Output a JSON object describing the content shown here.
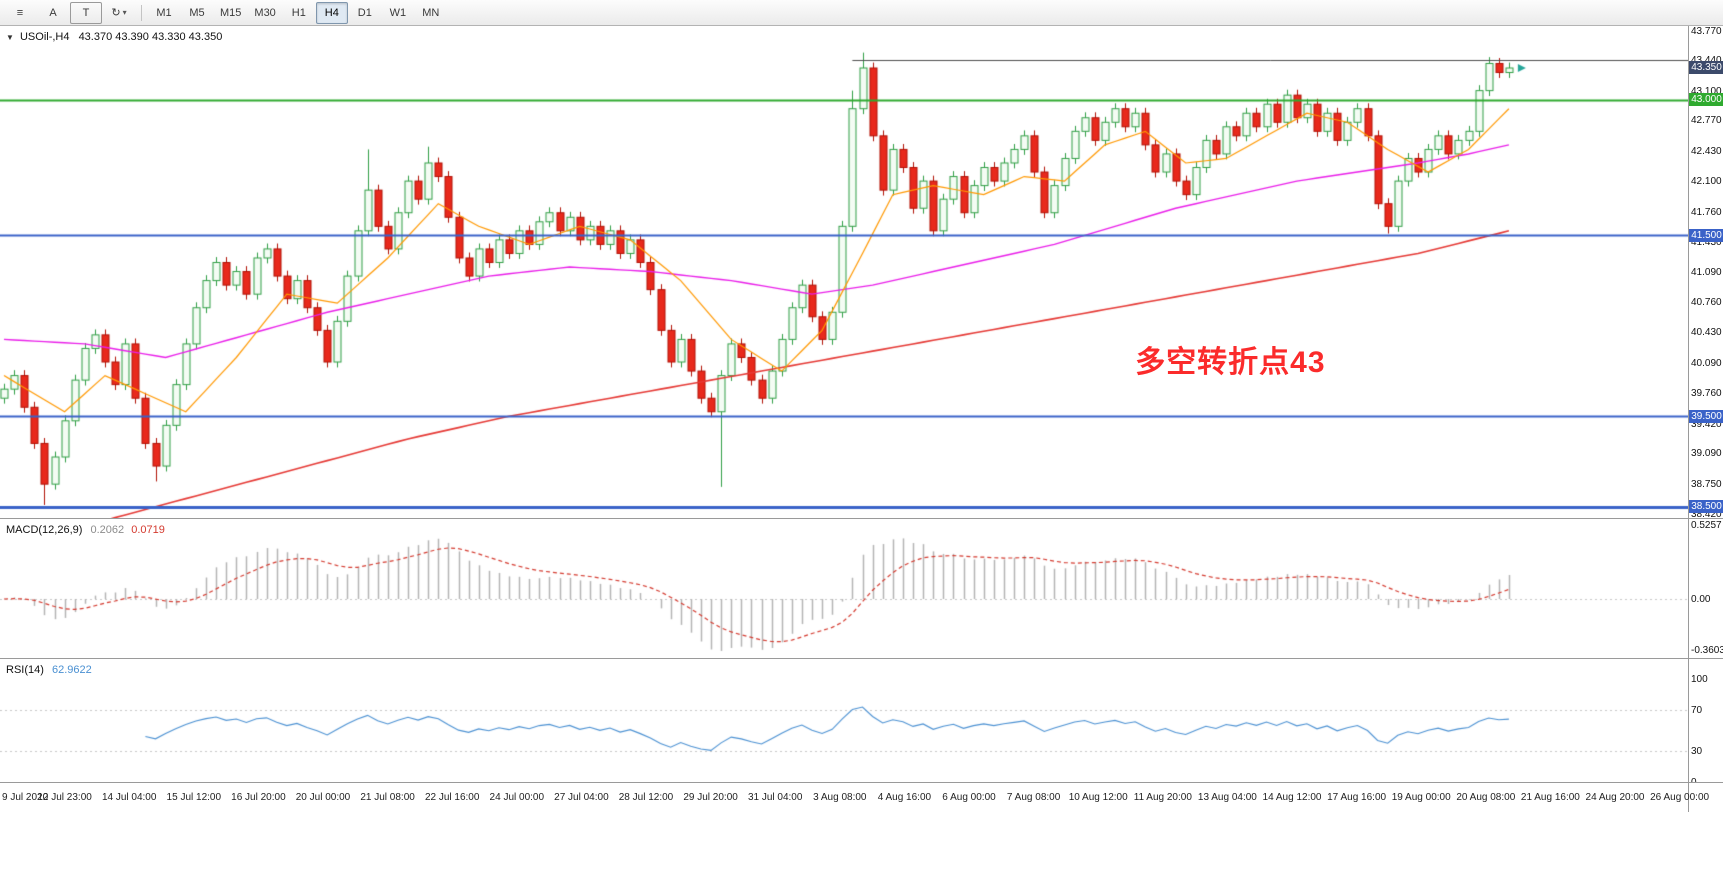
{
  "toolbar": {
    "tools": [
      {
        "id": "chart-list-button",
        "label": "≡"
      },
      {
        "id": "cursor-tool-button",
        "label": "A"
      },
      {
        "id": "text-tool-button",
        "label": "T"
      },
      {
        "id": "template-button",
        "label": "↻",
        "caret": true
      }
    ],
    "timeframes": [
      "M1",
      "M5",
      "M15",
      "M30",
      "H1",
      "H4",
      "D1",
      "W1",
      "MN"
    ],
    "active_timeframe": "H4"
  },
  "main_chart": {
    "collapse_icon": "▼",
    "symbol_label": "USOil-,H4",
    "ohlc_label": "43.370 43.390 43.330 43.350",
    "annotation": {
      "text": "多空转折点43",
      "bar": 112,
      "price": 40.38
    },
    "badges": [
      {
        "label": "43.350",
        "price": 43.35,
        "color": "#3c4a6b"
      },
      {
        "label": "43.000",
        "price": 43.0,
        "color": "#2faa2f"
      },
      {
        "label": "41.500",
        "price": 41.5,
        "color": "#3a62c8"
      },
      {
        "label": "39.500",
        "price": 39.5,
        "color": "#3a62c8"
      },
      {
        "label": "38.500",
        "price": 38.5,
        "color": "#3a62c8"
      }
    ],
    "hlines": [
      {
        "price": 43.44,
        "color": "#4d4d4d",
        "width": 1,
        "from_bar": 84
      },
      {
        "price": 43.0,
        "color": "#2faa2f",
        "width": 2
      },
      {
        "price": 41.5,
        "color": "#3a62c8",
        "width": 2
      },
      {
        "price": 39.5,
        "color": "#3a62c8",
        "width": 2
      },
      {
        "price": 38.5,
        "color": "#3a62c8",
        "width": 3
      }
    ]
  },
  "macd_panel": {
    "label": "MACD(12,26,9)",
    "value_main": "0.2062",
    "value_signal": "0.0719"
  },
  "rsi_panel": {
    "label": "RSI(14)",
    "value": "62.9622",
    "levels": [
      70,
      30
    ]
  },
  "colors": {
    "up_stroke": "#2f9e44",
    "up_fill": "#f4fcf4",
    "down_stroke": "#b01005",
    "down_fill": "#e8291c",
    "ma_fast": "#ff9800",
    "ma_mid": "#e augment",
    "ma_mid_fix": "#e91ee9",
    "ma_slow": "#e53935",
    "macd_hist": "#b4b4b4",
    "macd_signal": "#d43a2f",
    "rsi_line": "#4a90d2",
    "level_dots": "#c6c6c6",
    "marker": "#26a69a",
    "annotation": "#fb2b2b"
  },
  "chart_data": {
    "type": "candlestick",
    "symbol": "USOil-",
    "timeframe": "H4",
    "current_bar": {
      "open": 43.37,
      "high": 43.39,
      "low": 43.33,
      "close": 43.35
    },
    "y_axis": {
      "top_price": 43.77,
      "bottom_price": 38.42
    },
    "y_ticks": [
      {
        "label": "43.770",
        "value": 43.77
      },
      {
        "label": "43.440",
        "value": 43.44
      },
      {
        "label": "43.100",
        "value": 43.1
      },
      {
        "label": "42.770",
        "value": 42.77
      },
      {
        "label": "42.430",
        "value": 42.43
      },
      {
        "label": "42.100",
        "value": 42.1
      },
      {
        "label": "41.760",
        "value": 41.76
      },
      {
        "label": "41.430",
        "value": 41.43
      },
      {
        "label": "41.090",
        "value": 41.09
      },
      {
        "label": "40.760",
        "value": 40.76
      },
      {
        "label": "40.430",
        "value": 40.43
      },
      {
        "label": "40.090",
        "value": 40.09
      },
      {
        "label": "39.760",
        "value": 39.76
      },
      {
        "label": "39.420",
        "value": 39.42
      },
      {
        "label": "39.090",
        "value": 39.09
      },
      {
        "label": "38.750",
        "value": 38.75
      },
      {
        "label": "38.420",
        "value": 38.42
      }
    ],
    "first_open": 39.7,
    "default_wick": 0.06,
    "closes": [
      39.8,
      39.95,
      39.6,
      39.2,
      38.75,
      39.05,
      39.45,
      39.9,
      40.25,
      40.4,
      40.1,
      39.85,
      40.3,
      39.7,
      39.2,
      38.95,
      39.4,
      39.85,
      40.3,
      40.7,
      41.0,
      41.2,
      40.95,
      41.1,
      40.85,
      41.25,
      41.35,
      41.05,
      40.8,
      41.0,
      40.7,
      40.45,
      40.1,
      40.55,
      41.05,
      41.55,
      42.0,
      41.6,
      41.35,
      41.75,
      42.1,
      41.9,
      42.3,
      42.15,
      41.7,
      41.25,
      41.05,
      41.35,
      41.2,
      41.45,
      41.3,
      41.55,
      41.4,
      41.65,
      41.75,
      41.55,
      41.7,
      41.45,
      41.6,
      41.4,
      41.55,
      41.3,
      41.45,
      41.2,
      40.9,
      40.45,
      40.1,
      40.35,
      40.0,
      39.7,
      39.55,
      39.95,
      40.3,
      40.15,
      39.9,
      39.7,
      40.0,
      40.35,
      40.7,
      40.95,
      40.6,
      40.35,
      40.65,
      41.6,
      42.9,
      43.35,
      42.6,
      42.0,
      42.45,
      42.25,
      41.8,
      42.1,
      41.55,
      41.9,
      42.15,
      41.75,
      42.05,
      42.25,
      42.1,
      42.3,
      42.45,
      42.6,
      42.2,
      41.75,
      42.05,
      42.35,
      42.65,
      42.8,
      42.55,
      42.75,
      42.9,
      42.7,
      42.85,
      42.5,
      42.2,
      42.4,
      42.1,
      41.95,
      42.25,
      42.55,
      42.4,
      42.7,
      42.6,
      42.85,
      42.7,
      42.95,
      42.75,
      43.05,
      42.8,
      42.95,
      42.65,
      42.85,
      42.55,
      42.75,
      42.9,
      42.6,
      41.85,
      41.6,
      42.1,
      42.35,
      42.2,
      42.45,
      42.6,
      42.4,
      42.55,
      42.65,
      43.1,
      43.4,
      43.3,
      43.35
    ],
    "special_wicks": {
      "4": {
        "low": 38.52
      },
      "15": {
        "low": 38.78
      },
      "36": {
        "high": 42.45
      },
      "42": {
        "high": 42.48
      },
      "71": {
        "low": 38.72
      },
      "84": {
        "high": 43.1
      },
      "85": {
        "high": 43.52
      },
      "137": {
        "low": 41.52
      },
      "147": {
        "high": 43.47
      }
    },
    "ma_fast_anchors": [
      [
        0,
        39.95
      ],
      [
        6,
        39.55
      ],
      [
        10,
        39.95
      ],
      [
        14,
        39.75
      ],
      [
        18,
        39.55
      ],
      [
        23,
        40.15
      ],
      [
        28,
        40.85
      ],
      [
        33,
        40.75
      ],
      [
        38,
        41.25
      ],
      [
        43,
        41.85
      ],
      [
        47,
        41.6
      ],
      [
        52,
        41.4
      ],
      [
        57,
        41.6
      ],
      [
        62,
        41.45
      ],
      [
        67,
        41.0
      ],
      [
        72,
        40.35
      ],
      [
        77,
        40.0
      ],
      [
        81,
        40.45
      ],
      [
        85,
        41.3
      ],
      [
        88,
        41.95
      ],
      [
        92,
        42.05
      ],
      [
        97,
        41.95
      ],
      [
        101,
        42.15
      ],
      [
        105,
        42.1
      ],
      [
        109,
        42.5
      ],
      [
        113,
        42.65
      ],
      [
        117,
        42.3
      ],
      [
        121,
        42.35
      ],
      [
        125,
        42.6
      ],
      [
        129,
        42.85
      ],
      [
        133,
        42.75
      ],
      [
        137,
        42.45
      ],
      [
        141,
        42.2
      ],
      [
        145,
        42.45
      ],
      [
        149,
        42.9
      ]
    ],
    "ma_mid_anchors": [
      [
        0,
        40.35
      ],
      [
        8,
        40.3
      ],
      [
        16,
        40.15
      ],
      [
        24,
        40.4
      ],
      [
        32,
        40.65
      ],
      [
        40,
        40.85
      ],
      [
        48,
        41.05
      ],
      [
        56,
        41.15
      ],
      [
        64,
        41.1
      ],
      [
        72,
        41.0
      ],
      [
        80,
        40.85
      ],
      [
        86,
        40.95
      ],
      [
        92,
        41.1
      ],
      [
        98,
        41.25
      ],
      [
        104,
        41.4
      ],
      [
        110,
        41.6
      ],
      [
        116,
        41.8
      ],
      [
        122,
        41.95
      ],
      [
        128,
        42.1
      ],
      [
        134,
        42.2
      ],
      [
        140,
        42.3
      ],
      [
        145,
        42.4
      ],
      [
        149,
        42.5
      ]
    ],
    "ma_slow_anchors": [
      [
        0,
        38.1
      ],
      [
        10,
        38.35
      ],
      [
        20,
        38.65
      ],
      [
        30,
        38.95
      ],
      [
        40,
        39.25
      ],
      [
        50,
        39.5
      ],
      [
        60,
        39.7
      ],
      [
        70,
        39.9
      ],
      [
        80,
        40.1
      ],
      [
        90,
        40.3
      ],
      [
        100,
        40.5
      ],
      [
        110,
        40.7
      ],
      [
        120,
        40.9
      ],
      [
        130,
        41.1
      ],
      [
        140,
        41.3
      ],
      [
        149,
        41.55
      ]
    ],
    "macd": {
      "fast": 12,
      "slow": 26,
      "signal": 9,
      "ticks": [
        {
          "label": "0.5257",
          "value": 0.5257
        },
        {
          "label": "0.00",
          "value": 0
        },
        {
          "label": "-0.3603",
          "value": -0.3603
        }
      ]
    },
    "rsi": {
      "period": 14,
      "ticks": [
        {
          "label": "100",
          "value": 100
        },
        {
          "label": "70",
          "value": 70
        },
        {
          "label": "30",
          "value": 30
        },
        {
          "label": "0",
          "value": 0
        }
      ]
    },
    "time_labels": [
      "9 Jul 2020",
      "12 Jul 23:00",
      "14 Jul 04:00",
      "15 Jul 12:00",
      "16 Jul 20:00",
      "20 Jul 00:00",
      "21 Jul 08:00",
      "22 Jul 16:00",
      "24 Jul 00:00",
      "27 Jul 04:00",
      "28 Jul 12:00",
      "29 Jul 20:00",
      "31 Jul 04:00",
      "3 Aug 08:00",
      "4 Aug 16:00",
      "6 Aug 00:00",
      "7 Aug 08:00",
      "10 Aug 12:00",
      "11 Aug 20:00",
      "13 Aug 04:00",
      "14 Aug 12:00",
      "17 Aug 16:00",
      "19 Aug 00:00",
      "20 Aug 08:00",
      "21 Aug 16:00",
      "24 Aug 20:00",
      "26 Aug 00:00"
    ]
  }
}
